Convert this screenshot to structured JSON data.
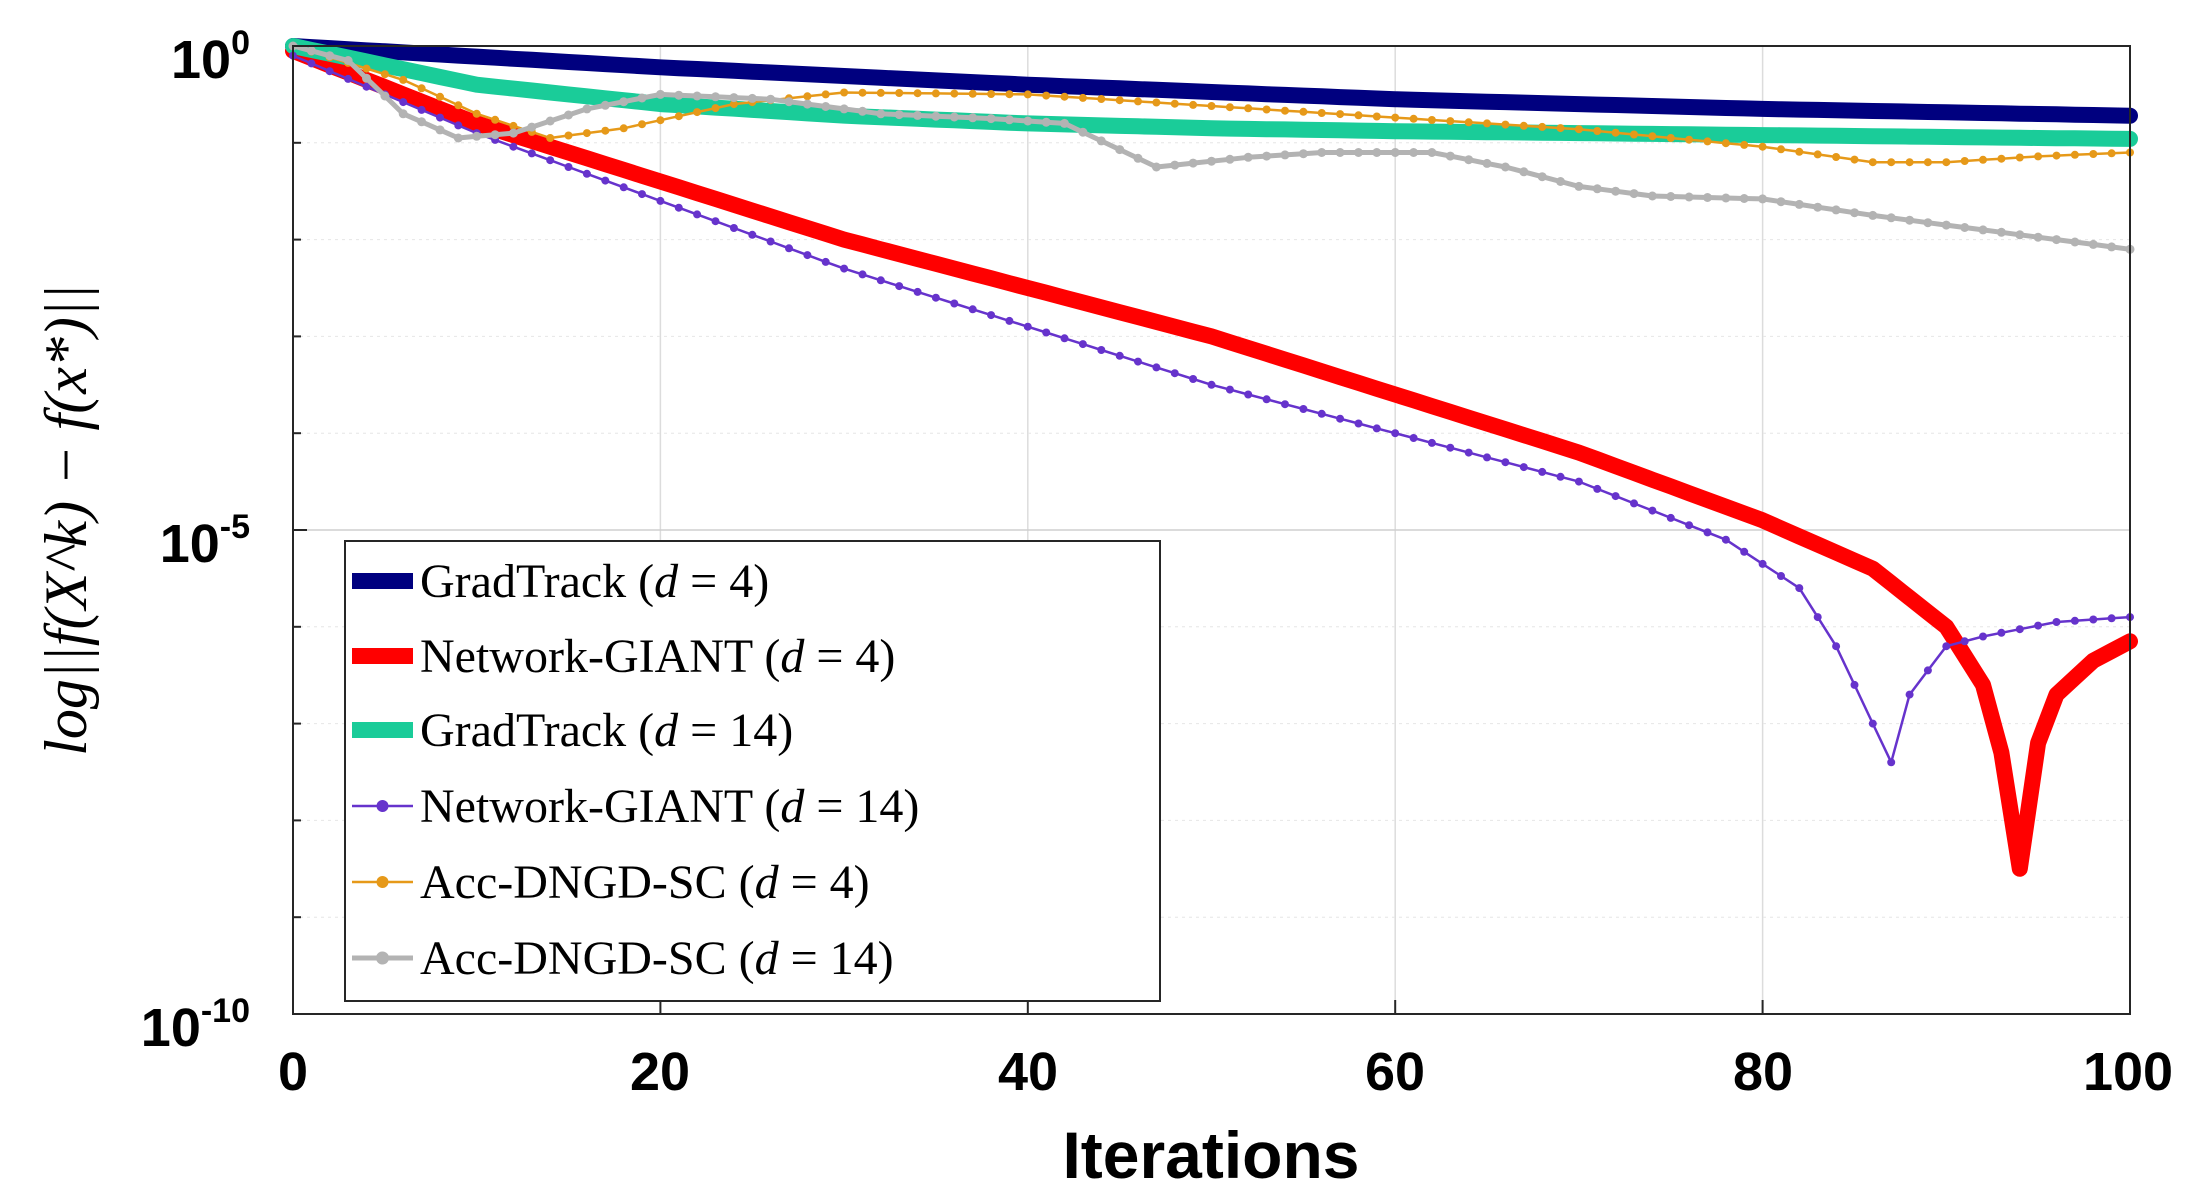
{
  "chart_data": {
    "type": "line",
    "xlabel": "Iterations",
    "ylabel": "log||f(X^k) − f(x*)||",
    "xlim": [
      0,
      100
    ],
    "ylim_exponent": [
      -10,
      0
    ],
    "yscale": "log",
    "grid": true,
    "legend_position": "bottom-left",
    "x_ticks": [
      "0",
      "20",
      "40",
      "60",
      "80",
      "100"
    ],
    "y_ticks": [
      {
        "base": "10",
        "exp": "0"
      },
      {
        "base": "10",
        "exp": "-5"
      },
      {
        "base": "10",
        "exp": "-10"
      }
    ],
    "series": [
      {
        "name": "GradTrack (d = 4)",
        "label_main": "GradTrack (",
        "label_var": "d",
        "label_rest": " = 4)",
        "color": "#00007f",
        "style": "thick",
        "log10_points": [
          [
            0,
            0
          ],
          [
            20,
            -0.22
          ],
          [
            40,
            -0.4
          ],
          [
            60,
            -0.55
          ],
          [
            80,
            -0.65
          ],
          [
            100,
            -0.72
          ]
        ]
      },
      {
        "name": "Network-GIANT (d = 4)",
        "label_main": "Network-GIANT (",
        "label_var": "d",
        "label_rest": " = 4)",
        "color": "#ff0000",
        "style": "thick",
        "log10_points": [
          [
            0,
            -0.05
          ],
          [
            10,
            -0.8
          ],
          [
            20,
            -1.4
          ],
          [
            30,
            -2.0
          ],
          [
            40,
            -2.5
          ],
          [
            50,
            -3.0
          ],
          [
            60,
            -3.6
          ],
          [
            70,
            -4.2
          ],
          [
            80,
            -4.9
          ],
          [
            86,
            -5.4
          ],
          [
            90,
            -6.0
          ],
          [
            92,
            -6.6
          ],
          [
            93,
            -7.3
          ],
          [
            94,
            -8.5
          ],
          [
            95,
            -7.2
          ],
          [
            96,
            -6.7
          ],
          [
            98,
            -6.35
          ],
          [
            100,
            -6.15
          ]
        ]
      },
      {
        "name": "GradTrack (d = 14)",
        "label_main": "GradTrack (",
        "label_var": "d",
        "label_rest": " = 14)",
        "color": "#1acc99",
        "style": "thick",
        "log10_points": [
          [
            0,
            0
          ],
          [
            10,
            -0.4
          ],
          [
            20,
            -0.6
          ],
          [
            30,
            -0.72
          ],
          [
            40,
            -0.8
          ],
          [
            50,
            -0.85
          ],
          [
            60,
            -0.88
          ],
          [
            70,
            -0.9
          ],
          [
            80,
            -0.92
          ],
          [
            90,
            -0.94
          ],
          [
            100,
            -0.96
          ]
        ]
      },
      {
        "name": "Network-GIANT (d = 14)",
        "label_main": "Network-GIANT (",
        "label_var": "d",
        "label_rest": " = 14)",
        "color": "#6633cc",
        "style": "thin-marker",
        "log10_points": [
          [
            0,
            -0.1
          ],
          [
            10,
            -0.9
          ],
          [
            20,
            -1.6
          ],
          [
            30,
            -2.3
          ],
          [
            40,
            -2.9
          ],
          [
            50,
            -3.5
          ],
          [
            60,
            -4.0
          ],
          [
            70,
            -4.5
          ],
          [
            78,
            -5.1
          ],
          [
            82,
            -5.6
          ],
          [
            84,
            -6.2
          ],
          [
            86,
            -7.0
          ],
          [
            87,
            -7.4
          ],
          [
            88,
            -6.7
          ],
          [
            90,
            -6.2
          ],
          [
            92,
            -6.1
          ],
          [
            96,
            -5.95
          ],
          [
            100,
            -5.9
          ]
        ]
      },
      {
        "name": "Acc-DNGD-SC (d = 4)",
        "label_main": "Acc-DNGD-SC (",
        "label_var": "d",
        "label_rest": " = 4)",
        "color": "#e69919",
        "style": "thin-marker",
        "log10_points": [
          [
            0,
            0
          ],
          [
            6,
            -0.35
          ],
          [
            10,
            -0.7
          ],
          [
            14,
            -0.95
          ],
          [
            18,
            -0.85
          ],
          [
            24,
            -0.6
          ],
          [
            30,
            -0.48
          ],
          [
            40,
            -0.5
          ],
          [
            50,
            -0.62
          ],
          [
            60,
            -0.74
          ],
          [
            70,
            -0.86
          ],
          [
            80,
            -1.04
          ],
          [
            86,
            -1.2
          ],
          [
            90,
            -1.2
          ],
          [
            95,
            -1.14
          ],
          [
            100,
            -1.1
          ]
        ]
      },
      {
        "name": "Acc-DNGD-SC (d = 14)",
        "label_main": "Acc-DNGD-SC (",
        "label_var": "d",
        "label_rest": " = 14)",
        "color": "#b3b3b3",
        "style": "medium-marker",
        "log10_points": [
          [
            0,
            0
          ],
          [
            3,
            -0.15
          ],
          [
            6,
            -0.7
          ],
          [
            9,
            -0.95
          ],
          [
            12,
            -0.9
          ],
          [
            16,
            -0.65
          ],
          [
            20,
            -0.5
          ],
          [
            26,
            -0.55
          ],
          [
            32,
            -0.7
          ],
          [
            38,
            -0.75
          ],
          [
            42,
            -0.8
          ],
          [
            47,
            -1.25
          ],
          [
            52,
            -1.15
          ],
          [
            56,
            -1.1
          ],
          [
            62,
            -1.1
          ],
          [
            66,
            -1.25
          ],
          [
            70,
            -1.45
          ],
          [
            74,
            -1.55
          ],
          [
            80,
            -1.58
          ],
          [
            86,
            -1.75
          ],
          [
            92,
            -1.9
          ],
          [
            100,
            -2.1
          ]
        ]
      }
    ]
  }
}
